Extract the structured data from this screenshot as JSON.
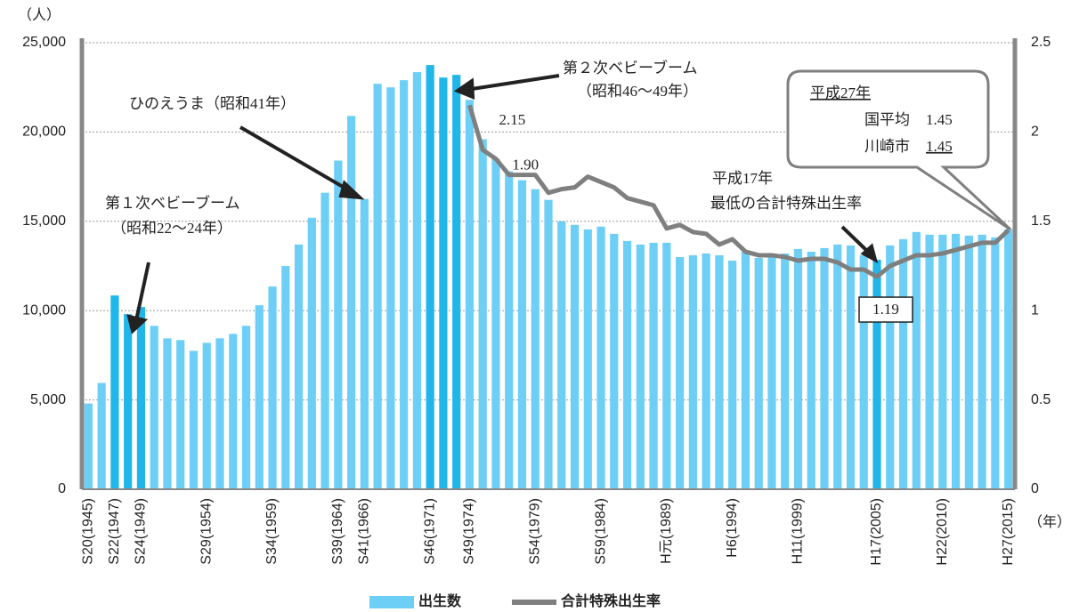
{
  "chart_data": {
    "type": "bar-line",
    "y_unit": "（人）",
    "x_unit": "（年）",
    "categories": [
      "S20(1945)",
      null,
      "S22(1947)",
      null,
      "S24(1949)",
      null,
      null,
      null,
      null,
      "S29(1954)",
      null,
      null,
      null,
      null,
      "S34(1959)",
      null,
      null,
      null,
      null,
      "S39(1964)",
      null,
      "S41(1966)",
      null,
      null,
      null,
      null,
      "S46(1971)",
      null,
      null,
      "S49(1974)",
      null,
      null,
      null,
      null,
      "S54(1979)",
      null,
      null,
      null,
      null,
      "S59(1984)",
      null,
      null,
      null,
      null,
      "H元(1989)",
      null,
      null,
      null,
      null,
      "H6(1994)",
      null,
      null,
      null,
      null,
      "H11(1999)",
      null,
      null,
      null,
      null,
      null,
      "H17(2005)",
      null,
      null,
      null,
      null,
      "H22(2010)",
      null,
      null,
      null,
      null,
      "H27(2015)"
    ],
    "series": [
      {
        "name": "出生数",
        "color": "#6dcff6",
        "colors": [
          "#6dcff6",
          "#6dcff6",
          "#21b6ea",
          "#21b6ea",
          "#21b6ea",
          "#6dcff6",
          "#6dcff6",
          "#6dcff6",
          "#6dcff6",
          "#6dcff6",
          "#6dcff6",
          "#6dcff6",
          "#6dcff6",
          "#6dcff6",
          "#6dcff6",
          "#6dcff6",
          "#6dcff6",
          "#6dcff6",
          "#6dcff6",
          "#6dcff6",
          "#6dcff6",
          "#6dcff6",
          "#6dcff6",
          "#6dcff6",
          "#6dcff6",
          "#6dcff6",
          "#21b6ea",
          "#21b6ea",
          "#21b6ea",
          "#6dcff6",
          "#6dcff6",
          "#6dcff6",
          "#6dcff6",
          "#6dcff6",
          "#6dcff6",
          "#6dcff6",
          "#6dcff6",
          "#6dcff6",
          "#6dcff6",
          "#6dcff6",
          "#6dcff6",
          "#6dcff6",
          "#6dcff6",
          "#6dcff6",
          "#6dcff6",
          "#6dcff6",
          "#6dcff6",
          "#6dcff6",
          "#6dcff6",
          "#6dcff6",
          "#6dcff6",
          "#6dcff6",
          "#6dcff6",
          "#6dcff6",
          "#6dcff6",
          "#6dcff6",
          "#6dcff6",
          "#6dcff6",
          "#6dcff6",
          "#6dcff6",
          "#21b6ea",
          "#6dcff6",
          "#6dcff6",
          "#6dcff6",
          "#6dcff6",
          "#6dcff6",
          "#6dcff6",
          "#6dcff6",
          "#6dcff6",
          "#6dcff6",
          "#6dcff6"
        ],
        "values": [
          4800,
          5950,
          10850,
          9800,
          10200,
          9150,
          8450,
          8350,
          7750,
          8200,
          8450,
          8700,
          9150,
          10300,
          11350,
          12500,
          13700,
          15200,
          16600,
          18400,
          20900,
          16250,
          22700,
          22500,
          22900,
          23350,
          23750,
          23050,
          23200,
          21800,
          19600,
          18500,
          17800,
          17300,
          16800,
          16200,
          15000,
          14800,
          14550,
          14700,
          14300,
          13900,
          13700,
          13800,
          13800,
          13000,
          13100,
          13200,
          13100,
          12800,
          13300,
          12950,
          13000,
          13200,
          13450,
          13300,
          13500,
          13700,
          13650,
          13100,
          12850,
          13650,
          14000,
          14400,
          14250,
          14250,
          14300,
          14200,
          14250,
          14100,
          14550
        ]
      },
      {
        "name": "合計特殊出生率",
        "color": "#7f7f7f",
        "axis": "y2",
        "values": [
          null,
          null,
          null,
          null,
          null,
          null,
          null,
          null,
          null,
          null,
          null,
          null,
          null,
          null,
          null,
          null,
          null,
          null,
          null,
          null,
          null,
          null,
          null,
          null,
          null,
          null,
          null,
          null,
          null,
          2.15,
          1.9,
          1.85,
          1.76,
          1.76,
          1.76,
          1.66,
          1.68,
          1.69,
          1.75,
          1.72,
          1.69,
          1.63,
          1.61,
          1.59,
          1.46,
          1.48,
          1.44,
          1.43,
          1.37,
          1.4,
          1.33,
          1.31,
          1.31,
          1.3,
          1.28,
          1.29,
          1.29,
          1.27,
          1.23,
          1.23,
          1.19,
          1.25,
          1.28,
          1.31,
          1.31,
          1.32,
          1.34,
          1.36,
          1.38,
          1.38,
          1.45
        ],
        "value_labels": [
          null,
          null,
          null,
          null,
          null,
          null,
          null,
          null,
          null,
          null,
          null,
          null,
          null,
          null,
          null,
          null,
          null,
          null,
          null,
          null,
          null,
          null,
          null,
          null,
          null,
          null,
          null,
          null,
          null,
          "2.15",
          "1.90",
          null,
          null,
          null,
          null,
          null,
          null,
          null,
          null,
          null,
          null,
          null,
          null,
          null,
          null,
          null,
          null,
          null,
          null,
          null,
          null,
          null,
          null,
          null,
          null,
          null,
          null,
          null,
          null,
          null,
          "1.19",
          null,
          null,
          null,
          null,
          null,
          null,
          null,
          null,
          null,
          null
        ]
      }
    ],
    "ylim": [
      0,
      25000
    ],
    "yticks": [
      0,
      {
        "value": 5000,
        "label": "5,000"
      },
      {
        "value": 10000,
        "label": "10,000"
      },
      {
        "value": 15000,
        "label": "15,000"
      },
      {
        "value": 20000,
        "label": "20,000"
      },
      {
        "value": 25000,
        "label": "25,000"
      }
    ],
    "y2lim": [
      0,
      2.5
    ],
    "y2ticks": [
      0,
      0.5,
      1,
      1.5,
      2,
      2.5
    ],
    "grid": true,
    "annotations": {
      "boom1": [
        "第１次ベビーブーム",
        "（昭和22～24年）"
      ],
      "hinoe": "ひのえうま（昭和41年）",
      "boom2": [
        "第２次ベビーブーム",
        "（昭和46～49年）"
      ],
      "lowest": [
        "平成17年",
        "最低の合計特殊出生率"
      ],
      "box": {
        "title": "平成27年",
        "rows": [
          [
            "国平均",
            "1.45"
          ],
          [
            "川崎市",
            "1.45"
          ]
        ]
      }
    }
  }
}
